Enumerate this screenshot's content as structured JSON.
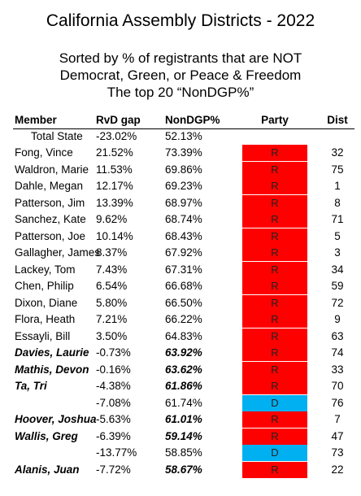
{
  "header": {
    "title": "California Assembly Districts - 2022",
    "subtitle": [
      "Sorted by % of registrants that are NOT",
      "Democrat, Green, or Peace & Freedom",
      "The top 20 “NonDGP%”"
    ]
  },
  "table": {
    "columns": [
      "Member",
      "RvD gap",
      "NonDGP%",
      "Party",
      "Dist"
    ],
    "total": {
      "member": "Total State",
      "rvd": "-23.02%",
      "nondgp": "52.13%"
    },
    "party_colors": {
      "R": "#ff0000",
      "D": "#00b0f0"
    },
    "rows": [
      {
        "member": "Fong, Vince",
        "rvd": "21.52%",
        "nondgp": "73.39%",
        "party": "R",
        "dist": 32
      },
      {
        "member": "Waldron, Marie",
        "rvd": "11.53%",
        "nondgp": "69.86%",
        "party": "R",
        "dist": 75
      },
      {
        "member": "Dahle, Megan",
        "rvd": "12.17%",
        "nondgp": "69.23%",
        "party": "R",
        "dist": 1
      },
      {
        "member": "Patterson, Jim",
        "rvd": "13.39%",
        "nondgp": "68.97%",
        "party": "R",
        "dist": 8
      },
      {
        "member": "Sanchez, Kate",
        "rvd": "9.62%",
        "nondgp": "68.74%",
        "party": "R",
        "dist": 71
      },
      {
        "member": "Patterson, Joe",
        "rvd": "10.14%",
        "nondgp": "68.43%",
        "party": "R",
        "dist": 5
      },
      {
        "member": "Gallagher, James",
        "rvd": "8.37%",
        "nondgp": "67.92%",
        "party": "R",
        "dist": 3
      },
      {
        "member": "Lackey, Tom",
        "rvd": "7.43%",
        "nondgp": "67.31%",
        "party": "R",
        "dist": 34
      },
      {
        "member": "Chen, Philip",
        "rvd": "6.54%",
        "nondgp": "66.68%",
        "party": "R",
        "dist": 59
      },
      {
        "member": "Dixon, Diane",
        "rvd": "5.80%",
        "nondgp": "66.50%",
        "party": "R",
        "dist": 72
      },
      {
        "member": "Flora, Heath",
        "rvd": "7.21%",
        "nondgp": "66.22%",
        "party": "R",
        "dist": 9
      },
      {
        "member": "Essayli, Bill",
        "rvd": "3.50%",
        "nondgp": "64.83%",
        "party": "R",
        "dist": 63
      },
      {
        "member": "Davies, Laurie",
        "rvd": "-0.73%",
        "nondgp": "63.92%",
        "party": "R",
        "dist": 74,
        "emphasized": true
      },
      {
        "member": "Mathis, Devon",
        "rvd": "-0.16%",
        "nondgp": "63.62%",
        "party": "R",
        "dist": 33,
        "emphasized": true
      },
      {
        "member": "Ta, Tri",
        "rvd": "-4.38%",
        "nondgp": "61.86%",
        "party": "R",
        "dist": 70,
        "emphasized": true
      },
      {
        "member": null,
        "rvd": "-7.08%",
        "nondgp": "61.74%",
        "party": "D",
        "dist": 76
      },
      {
        "member": "Hoover, Joshua",
        "rvd": "-5.63%",
        "nondgp": "61.01%",
        "party": "R",
        "dist": 7,
        "emphasized": true
      },
      {
        "member": "Wallis, Greg",
        "rvd": "-6.39%",
        "nondgp": "59.14%",
        "party": "R",
        "dist": 47,
        "emphasized": true
      },
      {
        "member": null,
        "rvd": "-13.77%",
        "nondgp": "58.85%",
        "party": "D",
        "dist": 73
      },
      {
        "member": "Alanis, Juan",
        "rvd": "-7.72%",
        "nondgp": "58.67%",
        "party": "R",
        "dist": 22,
        "emphasized": true
      }
    ]
  }
}
